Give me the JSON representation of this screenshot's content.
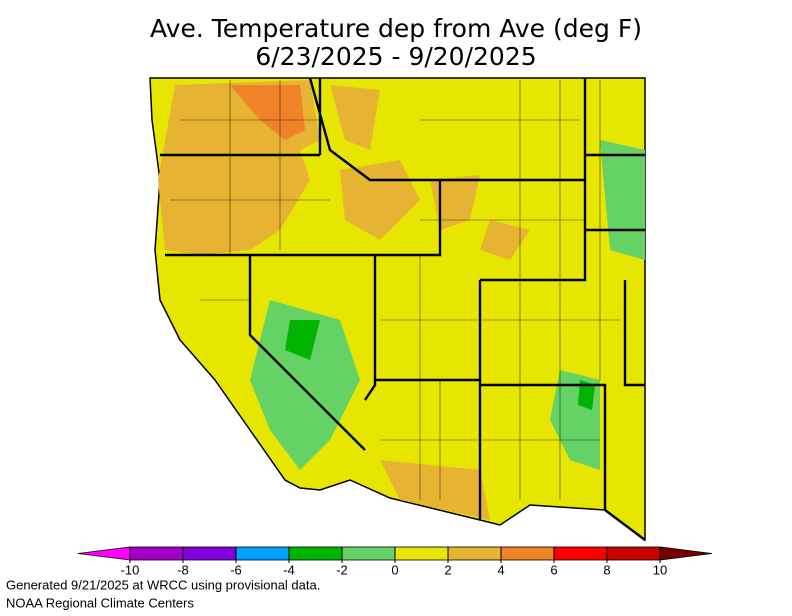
{
  "title": "Ave. Temperature dep from Ave (deg F)",
  "subtitle": "6/23/2025 - 9/20/2025",
  "colorbar": {
    "ticks": [
      -10,
      -8,
      -6,
      -4,
      -2,
      0,
      2,
      4,
      6,
      8,
      10
    ],
    "colors": [
      "#ff00ff",
      "#a000c8",
      "#8200dc",
      "#00a0ff",
      "#00b400",
      "#64d264",
      "#e6e600",
      "#e6b432",
      "#f08228",
      "#ff0000",
      "#c80000",
      "#780000"
    ]
  },
  "footer": [
    "Generated 9/21/2025 at WRCC using provisional data.",
    "NOAA Regional Climate Centers"
  ]
}
